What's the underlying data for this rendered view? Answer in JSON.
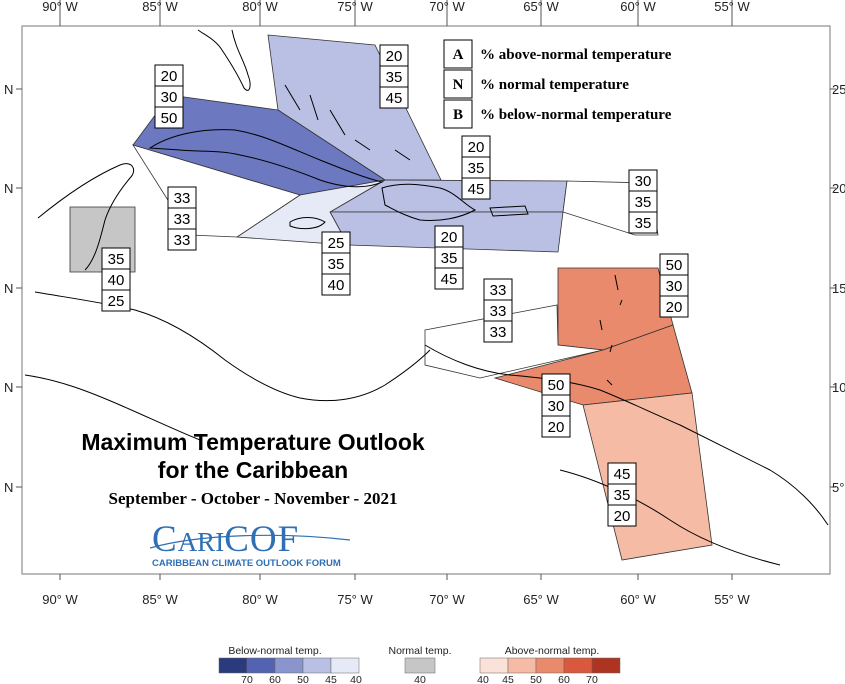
{
  "axes": {
    "lon_labels": [
      "90° W",
      "85° W",
      "80° W",
      "75° W",
      "70° W",
      "65° W",
      "60° W",
      "55° W"
    ],
    "lat_left_labels": [
      "N",
      "N",
      "N",
      "N",
      "N"
    ],
    "lat_right_labels": [
      "25°",
      "20°",
      "15°",
      "10°",
      "5°"
    ]
  },
  "title": {
    "line1": "Maximum Temperature Outlook",
    "line2": "for the Caribbean",
    "season": "September - October - November - 2021"
  },
  "logo": {
    "text_c": "C",
    "text_ari": "ARI",
    "text_cof": "COF",
    "tagline": "CARIBBEAN CLIMATE OUTLOOK FORUM"
  },
  "legend": [
    {
      "key": "A",
      "text": "% above-normal temperature"
    },
    {
      "key": "N",
      "text": "% normal temperature"
    },
    {
      "key": "B",
      "text": "% below-normal temperature"
    }
  ],
  "colorbar": {
    "below_title": "Below-normal temp.",
    "normal_title": "Normal temp.",
    "above_title": "Above-normal temp.",
    "below_colors": [
      "#2b3a7d",
      "#5363b1",
      "#8a95cd",
      "#b9c0e3",
      "#e6e9f6"
    ],
    "below_values": [
      "70",
      "60",
      "50",
      "45",
      "40"
    ],
    "normal_color": "#c6c6c6",
    "normal_values": [
      "40"
    ],
    "above_colors": [
      "#fbe2d8",
      "#f6bba4",
      "#e98a6c",
      "#d8593d",
      "#ad3421"
    ],
    "above_values": [
      "40",
      "45",
      "50",
      "60",
      "70"
    ]
  },
  "regions": [
    {
      "name": "bahamas",
      "A": "20",
      "N": "35",
      "B": "45",
      "category": "below-45"
    },
    {
      "name": "cuba",
      "A": "20",
      "N": "30",
      "B": "50",
      "category": "below-50"
    },
    {
      "name": "hispaniola-north",
      "A": "20",
      "N": "35",
      "B": "45",
      "category": "below-45"
    },
    {
      "name": "hispaniola-south-puerto-rico",
      "A": "20",
      "N": "35",
      "B": "45",
      "category": "below-45"
    },
    {
      "name": "jamaica",
      "A": "25",
      "N": "35",
      "B": "40",
      "category": "below-40"
    },
    {
      "name": "western-caribbean-sea",
      "A": "33",
      "N": "33",
      "B": "33",
      "category": "climatology"
    },
    {
      "name": "belize",
      "A": "35",
      "N": "40",
      "B": "25",
      "category": "normal-40"
    },
    {
      "name": "northern-leewards",
      "A": "30",
      "N": "35",
      "B": "35",
      "category": "climatology"
    },
    {
      "name": "southern-leewards-windwards",
      "A": "50",
      "N": "30",
      "B": "20",
      "category": "above-50"
    },
    {
      "name": "abc-islands",
      "A": "33",
      "N": "33",
      "B": "33",
      "category": "climatology"
    },
    {
      "name": "trinidad-tobago",
      "A": "50",
      "N": "30",
      "B": "20",
      "category": "above-50"
    },
    {
      "name": "guianas",
      "A": "45",
      "N": "35",
      "B": "20",
      "category": "above-45"
    }
  ]
}
